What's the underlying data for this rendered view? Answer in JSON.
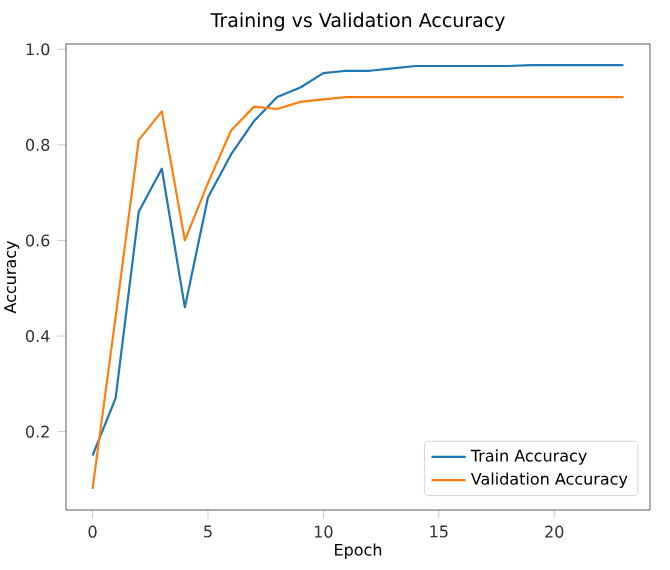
{
  "chart_data": {
    "type": "line",
    "title": "Training vs Validation Accuracy",
    "xlabel": "Epoch",
    "ylabel": "Accuracy",
    "x": [
      0,
      1,
      2,
      3,
      4,
      5,
      6,
      7,
      8,
      9,
      10,
      11,
      12,
      13,
      14,
      15,
      16,
      17,
      18,
      19,
      20,
      21,
      22,
      23
    ],
    "series": [
      {
        "name": "Train Accuracy",
        "color": "#1f77b4",
        "values": [
          0.15,
          0.27,
          0.66,
          0.75,
          0.46,
          0.69,
          0.78,
          0.85,
          0.9,
          0.92,
          0.95,
          0.955,
          0.955,
          0.96,
          0.965,
          0.965,
          0.965,
          0.965,
          0.965,
          0.967,
          0.967,
          0.967,
          0.967,
          0.967
        ]
      },
      {
        "name": "Validation Accuracy",
        "color": "#ff7f0e",
        "values": [
          0.08,
          0.44,
          0.81,
          0.87,
          0.6,
          0.72,
          0.83,
          0.88,
          0.875,
          0.89,
          0.895,
          0.9,
          0.9,
          0.9,
          0.9,
          0.9,
          0.9,
          0.9,
          0.9,
          0.9,
          0.9,
          0.9,
          0.9,
          0.9
        ]
      }
    ],
    "xlim": [
      -1.15,
      24.15
    ],
    "ylim": [
      0.036,
      1.011
    ],
    "xticks": [
      0,
      5,
      10,
      15,
      20
    ],
    "yticks": [
      {
        "value": 0.2,
        "label": "0.2"
      },
      {
        "value": 0.4,
        "label": "0.4"
      },
      {
        "value": 0.6,
        "label": "0.6"
      },
      {
        "value": 0.8,
        "label": "0.8"
      },
      {
        "value": 1.0,
        "label": "1.0"
      }
    ],
    "legend": "bottom right",
    "grid": false,
    "marker": "none",
    "line_style": "solid"
  }
}
